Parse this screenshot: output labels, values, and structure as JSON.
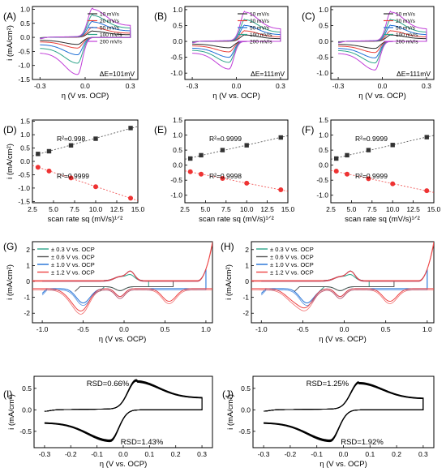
{
  "chart_data": [
    {
      "id": "A",
      "panel_label": "(A)",
      "type": "line",
      "ylabel": "i (mA/cm²)",
      "xlabel": "η (V vs. OCP)",
      "xlim": [
        -0.35,
        0.35
      ],
      "ylim": [
        -1.5,
        1.1
      ],
      "xticks": [
        -0.3,
        0.0,
        0.3
      ],
      "xtick_labels": [
        "-0.3",
        "0.0",
        "0.3"
      ],
      "yticks": [
        -1.5,
        -1.0,
        -0.5,
        0.0,
        0.5,
        1.0
      ],
      "ytick_labels": [
        "-1.5",
        "-1.0",
        "-0.5",
        "0.0",
        "0.5",
        "1.0"
      ],
      "legend_position": "top-right",
      "annotation": "ΔE=101mV",
      "series": [
        {
          "name": "10 mV/s",
          "color": "#2b2b2b",
          "ipa": 0.22,
          "ipc": -0.25,
          "ea": 0.05,
          "ec": -0.05
        },
        {
          "name": "20 mV/s",
          "color": "#e8413b",
          "ipa": 0.35,
          "ipc": -0.38,
          "ea": 0.05,
          "ec": -0.05
        },
        {
          "name": "50 mV/s",
          "color": "#1f6fd6",
          "ipa": 0.55,
          "ipc": -0.62,
          "ea": 0.05,
          "ec": -0.05
        },
        {
          "name": "100 mV/s",
          "color": "#2ea58a",
          "ipa": 0.78,
          "ipc": -0.92,
          "ea": 0.05,
          "ec": -0.05
        },
        {
          "name": "200 mV/s",
          "color": "#c03fd8",
          "ipa": 1.0,
          "ipc": -1.32,
          "ea": 0.05,
          "ec": -0.05
        }
      ]
    },
    {
      "id": "B",
      "panel_label": "(B)",
      "type": "line",
      "ylabel": "",
      "xlabel": "η (V vs. OCP)",
      "xlim": [
        -0.35,
        0.35
      ],
      "ylim": [
        -1.2,
        1.1
      ],
      "xticks": [
        -0.3,
        0.0,
        0.3
      ],
      "xtick_labels": [
        "-0.3",
        "0.0",
        "0.3"
      ],
      "yticks": [
        -1.0,
        -0.5,
        0.0,
        0.5,
        1.0
      ],
      "ytick_labels": [
        "-1.0",
        "-0.5",
        "0.0",
        "0.5",
        "1.0"
      ],
      "legend_position": "top-right",
      "annotation": "ΔE=111mV",
      "series": [
        {
          "name": "10 mV/s",
          "color": "#2b2b2b",
          "ipa": 0.2,
          "ipc": -0.2,
          "ea": 0.06,
          "ec": -0.05
        },
        {
          "name": "20 mV/s",
          "color": "#e8413b",
          "ipa": 0.33,
          "ipc": -0.33,
          "ea": 0.06,
          "ec": -0.05
        },
        {
          "name": "50 mV/s",
          "color": "#1f6fd6",
          "ipa": 0.5,
          "ipc": -0.5,
          "ea": 0.06,
          "ec": -0.05
        },
        {
          "name": "100 mV/s",
          "color": "#2ea58a",
          "ipa": 0.68,
          "ipc": -0.66,
          "ea": 0.06,
          "ec": -0.05
        },
        {
          "name": "200 mV/s",
          "color": "#c03fd8",
          "ipa": 0.92,
          "ipc": -0.87,
          "ea": 0.06,
          "ec": -0.05
        }
      ]
    },
    {
      "id": "C",
      "panel_label": "(C)",
      "type": "line",
      "ylabel": "",
      "xlabel": "η (V vs. OCP)",
      "xlim": [
        -0.35,
        0.35
      ],
      "ylim": [
        -1.2,
        1.1
      ],
      "xticks": [
        -0.3,
        0.0,
        0.3
      ],
      "xtick_labels": [
        "-0.3",
        "0.0",
        "0.3"
      ],
      "yticks": [
        -1.0,
        -0.5,
        0.0,
        0.5,
        1.0
      ],
      "ytick_labels": [
        "-1.0",
        "-0.5",
        "0.0",
        "0.5",
        "1.0"
      ],
      "legend_position": "top-right",
      "annotation": "ΔE=111mV",
      "series": [
        {
          "name": "10 mV/s",
          "color": "#2b2b2b",
          "ipa": 0.2,
          "ipc": -0.22,
          "ea": 0.06,
          "ec": -0.05
        },
        {
          "name": "20 mV/s",
          "color": "#e8413b",
          "ipa": 0.33,
          "ipc": -0.35,
          "ea": 0.06,
          "ec": -0.05
        },
        {
          "name": "50 mV/s",
          "color": "#1f6fd6",
          "ipa": 0.5,
          "ipc": -0.52,
          "ea": 0.06,
          "ec": -0.05
        },
        {
          "name": "100 mV/s",
          "color": "#2ea58a",
          "ipa": 0.68,
          "ipc": -0.68,
          "ea": 0.06,
          "ec": -0.05
        },
        {
          "name": "200 mV/s",
          "color": "#c03fd8",
          "ipa": 0.92,
          "ipc": -0.9,
          "ea": 0.06,
          "ec": -0.05
        }
      ]
    },
    {
      "id": "D",
      "panel_label": "(D)",
      "type": "scatter",
      "ylabel": "i (mA/cm²)",
      "xlabel": "scan rate sq (mV/s)¹ᐟ²",
      "xlim": [
        2.5,
        15.0
      ],
      "ylim": [
        -1.55,
        1.55
      ],
      "xticks": [
        2.5,
        5.0,
        7.5,
        10.0,
        12.5,
        15.0
      ],
      "xtick_labels": [
        "2.5",
        "5.0",
        "7.5",
        "10.0",
        "12.5",
        "15.0"
      ],
      "yticks": [
        -1.5,
        -1.0,
        -0.5,
        0.0,
        0.5,
        1.0,
        1.5
      ],
      "ytick_labels": [
        "-1.5",
        "-1.0",
        "-0.5",
        "0.0",
        "0.5",
        "1.0",
        "1.5"
      ],
      "series": [
        {
          "name": "anodic",
          "color": "#333333",
          "marker": "square",
          "x": [
            3.16,
            4.47,
            7.07,
            10.0,
            14.14
          ],
          "y": [
            0.28,
            0.38,
            0.6,
            0.85,
            1.25
          ],
          "r2": "R²=0.998"
        },
        {
          "name": "cathodic",
          "color": "#ee3333",
          "marker": "circle",
          "x": [
            3.16,
            4.47,
            7.07,
            10.0,
            14.14
          ],
          "y": [
            -0.22,
            -0.36,
            -0.62,
            -0.95,
            -1.38
          ],
          "r2": "R²=0.9999"
        }
      ]
    },
    {
      "id": "E",
      "panel_label": "(E)",
      "type": "scatter",
      "ylabel": "",
      "xlabel": "scan rate sq (mV/s)¹ᐟ²",
      "xlim": [
        2.5,
        15.0
      ],
      "ylim": [
        -1.25,
        1.5
      ],
      "xticks": [
        2.5,
        5.0,
        7.5,
        10.0,
        12.5,
        15.0
      ],
      "xtick_labels": [
        "2.5",
        "5.0",
        "7.5",
        "10.0",
        "12.5",
        "15.0"
      ],
      "yticks": [
        -1.0,
        -0.5,
        0.0,
        0.5,
        1.0,
        1.5
      ],
      "ytick_labels": [
        "-1.0",
        "-0.5",
        "0.0",
        "0.5",
        "1.0",
        "1.5"
      ],
      "series": [
        {
          "name": "anodic",
          "color": "#333333",
          "marker": "square",
          "x": [
            3.16,
            4.47,
            7.07,
            10.0,
            14.14
          ],
          "y": [
            0.22,
            0.33,
            0.5,
            0.66,
            0.92
          ],
          "r2": "R²=0.9999"
        },
        {
          "name": "cathodic",
          "color": "#ee3333",
          "marker": "circle",
          "x": [
            3.16,
            4.47,
            7.07,
            10.0,
            14.14
          ],
          "y": [
            -0.22,
            -0.3,
            -0.44,
            -0.6,
            -0.82
          ],
          "r2": "R²=0.9998"
        }
      ]
    },
    {
      "id": "F",
      "panel_label": "(F)",
      "type": "scatter",
      "ylabel": "",
      "xlabel": "scan rate sq (mV/s)¹ᐟ²",
      "xlim": [
        2.5,
        15.0
      ],
      "ylim": [
        -1.25,
        1.5
      ],
      "xticks": [
        2.5,
        5.0,
        7.5,
        10.0,
        12.5,
        15.0
      ],
      "xtick_labels": [
        "2.5",
        "5.0",
        "7.5",
        "10.0",
        "12.5",
        "15.0"
      ],
      "yticks": [
        -1.0,
        -0.5,
        0.0,
        0.5,
        1.0,
        1.5
      ],
      "ytick_labels": [
        "-1.0",
        "-0.5",
        "0.0",
        "0.5",
        "1.0",
        "1.5"
      ],
      "series": [
        {
          "name": "anodic",
          "color": "#333333",
          "marker": "square",
          "x": [
            3.16,
            4.47,
            7.07,
            10.0,
            14.14
          ],
          "y": [
            0.22,
            0.33,
            0.5,
            0.67,
            0.93
          ],
          "r2": "R²=0.9999"
        },
        {
          "name": "cathodic",
          "color": "#ee3333",
          "marker": "circle",
          "x": [
            3.16,
            4.47,
            7.07,
            10.0,
            14.14
          ],
          "y": [
            -0.2,
            -0.3,
            -0.45,
            -0.62,
            -0.85
          ],
          "r2": "R²=0.9999"
        }
      ]
    },
    {
      "id": "G",
      "panel_label": "(G)",
      "type": "line",
      "ylabel": "i (mA/cm²)",
      "xlabel": "η (V vs. OCP)",
      "xlim": [
        -1.12,
        1.08
      ],
      "ylim": [
        -2.6,
        2.5
      ],
      "xticks": [
        -1.0,
        -0.5,
        0.0,
        0.5,
        1.0
      ],
      "xtick_labels": [
        "-1.0",
        "-0.5",
        "0.0",
        "0.5",
        "1.0"
      ],
      "yticks": [
        -2,
        -1,
        0,
        1,
        2
      ],
      "ytick_labels": [
        "-2",
        "-1",
        "0",
        "1",
        "2"
      ],
      "legend_position": "top-left",
      "series": [
        {
          "name": "± 0.3 V vs. OCP",
          "color": "#2ea58a",
          "vmax": 0.3
        },
        {
          "name": "± 0.6 V vs. OCP",
          "color": "#555555",
          "vmax": 0.6
        },
        {
          "name": "± 1.0 V vs. OCP",
          "color": "#1f6fd6",
          "vmax": 1.0
        },
        {
          "name": "± 1.2 V vs. OCP",
          "color": "#ee4444",
          "vmax": 1.2
        }
      ]
    },
    {
      "id": "H",
      "panel_label": "(H)",
      "type": "line",
      "ylabel": "i (mA/cm²)",
      "xlabel": "η (V vs. OCP)",
      "xlim": [
        -1.12,
        1.08
      ],
      "ylim": [
        -2.6,
        2.5
      ],
      "xticks": [
        -1.0,
        -0.5,
        0.0,
        0.5,
        1.0
      ],
      "xtick_labels": [
        "-1.0",
        "-0.5",
        "0.0",
        "0.5",
        "1.0"
      ],
      "yticks": [
        -2,
        -1,
        0,
        1,
        2
      ],
      "ytick_labels": [
        "-2",
        "-1",
        "0",
        "1",
        "2"
      ],
      "legend_position": "top-left",
      "series": [
        {
          "name": "± 0.3 V vs. OCP",
          "color": "#2ea58a",
          "vmax": 0.3
        },
        {
          "name": "± 0.6 V vs. OCP",
          "color": "#555555",
          "vmax": 0.6
        },
        {
          "name": "± 1.0 V vs. OCP",
          "color": "#1f6fd6",
          "vmax": 1.0
        },
        {
          "name": "± 1.2 V vs. OCP",
          "color": "#ee4444",
          "vmax": 1.2
        }
      ]
    },
    {
      "id": "I",
      "panel_label": "(I)",
      "type": "line",
      "ylabel": "i (mA/cm²)",
      "xlabel": "η (V vs. OCP)",
      "xlim": [
        -0.34,
        0.34
      ],
      "ylim": [
        -0.88,
        0.78
      ],
      "xticks": [
        -0.3,
        -0.2,
        -0.1,
        0.0,
        0.1,
        0.2,
        0.3
      ],
      "xtick_labels": [
        "-0.3",
        "-0.2",
        "-0.1",
        "0.0",
        "0.1",
        "0.2",
        "0.3"
      ],
      "yticks": [
        -0.5,
        0.0,
        0.5
      ],
      "ytick_labels": [
        "-0.5",
        "0.0",
        "0.5"
      ],
      "annotations": [
        "RSD=0.66%",
        "RSD=1.43%"
      ],
      "series": [
        {
          "name": "",
          "color": "#000000",
          "ipa": 0.66,
          "ipc": -0.72,
          "ea": 0.05,
          "ec": -0.05
        }
      ]
    },
    {
      "id": "J",
      "panel_label": "(J)",
      "type": "line",
      "ylabel": "i (mA/cm²)",
      "xlabel": "η (V vs. OCP)",
      "xlim": [
        -0.34,
        0.34
      ],
      "ylim": [
        -0.88,
        0.78
      ],
      "xticks": [
        -0.3,
        -0.2,
        -0.1,
        0.0,
        0.1,
        0.2,
        0.3
      ],
      "xtick_labels": [
        "-0.3",
        "-0.2",
        "-0.1",
        "0.0",
        "0.1",
        "0.2",
        "0.3"
      ],
      "yticks": [
        -0.5,
        0.0,
        0.5
      ],
      "ytick_labels": [
        "-0.5",
        "0.0",
        "0.5"
      ],
      "annotations": [
        "RSD=1.25%",
        "RSD=1.92%"
      ],
      "series": [
        {
          "name": "",
          "color": "#000000",
          "ipa": 0.62,
          "ipc": -0.72,
          "ea": 0.06,
          "ec": -0.05
        }
      ]
    }
  ]
}
